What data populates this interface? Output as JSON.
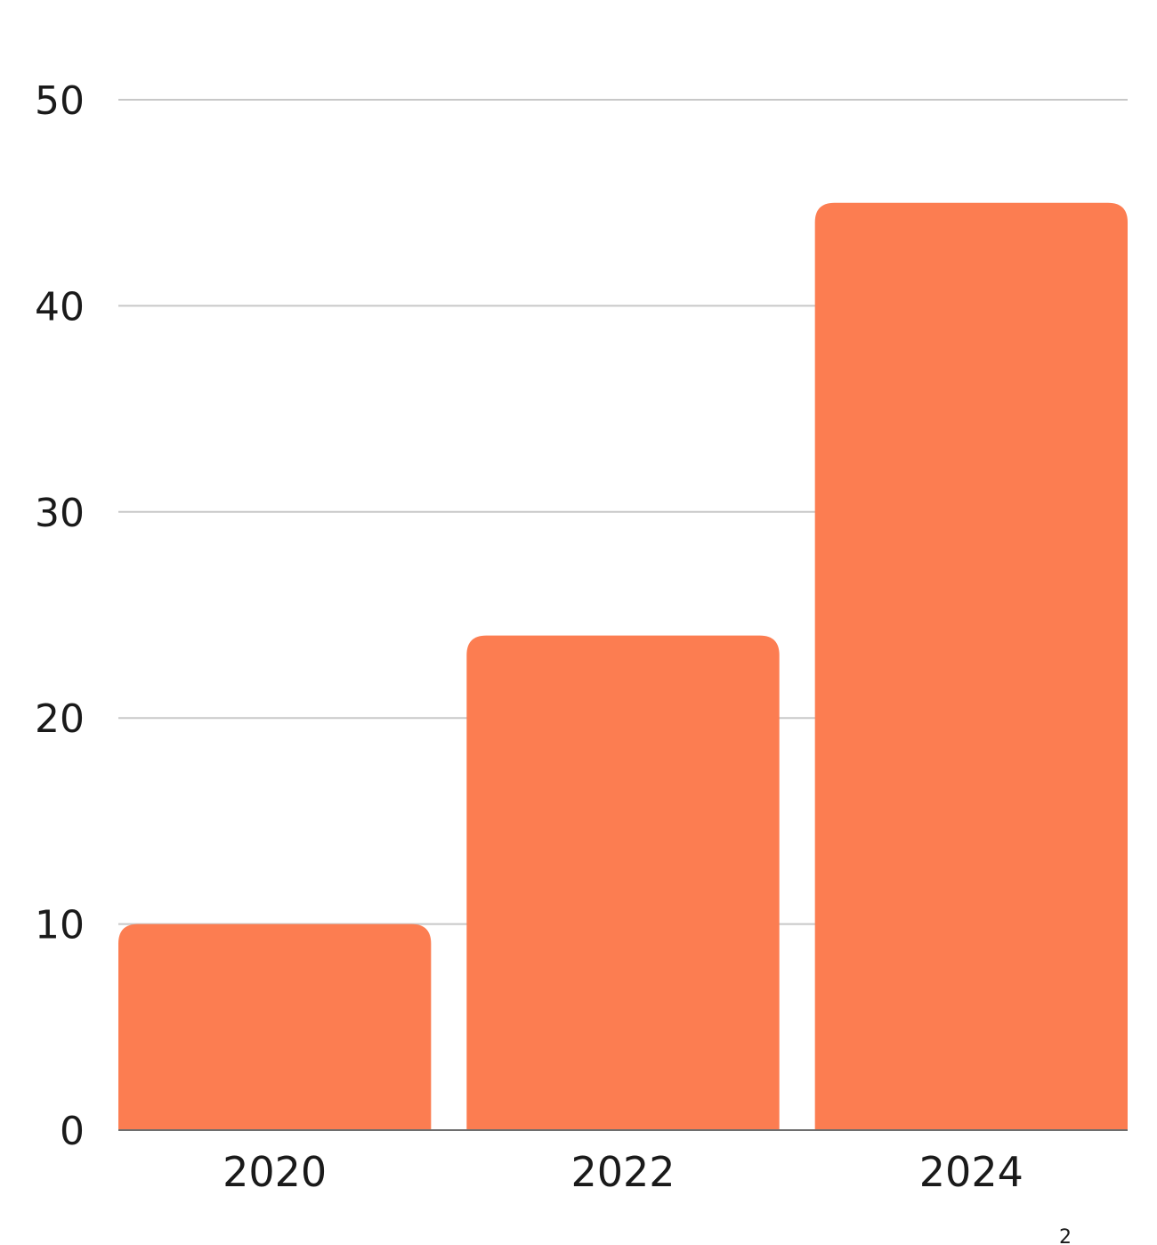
{
  "chart_data": {
    "type": "bar",
    "categories": [
      "2020",
      "2022",
      "2024"
    ],
    "values": [
      10,
      24,
      45
    ],
    "ylim": [
      0,
      50
    ],
    "yticks": [
      0,
      10,
      20,
      30,
      40,
      50
    ],
    "ytick_labels": [
      "0",
      "10",
      "20",
      "30",
      "40",
      "50"
    ],
    "grid": true,
    "legend": "none",
    "colors": {
      "bar": "#FC7D51",
      "grid": "#C8C8C8",
      "axis": "#6E6E6E",
      "text": "#1A1A1A"
    }
  },
  "footnote": "2"
}
